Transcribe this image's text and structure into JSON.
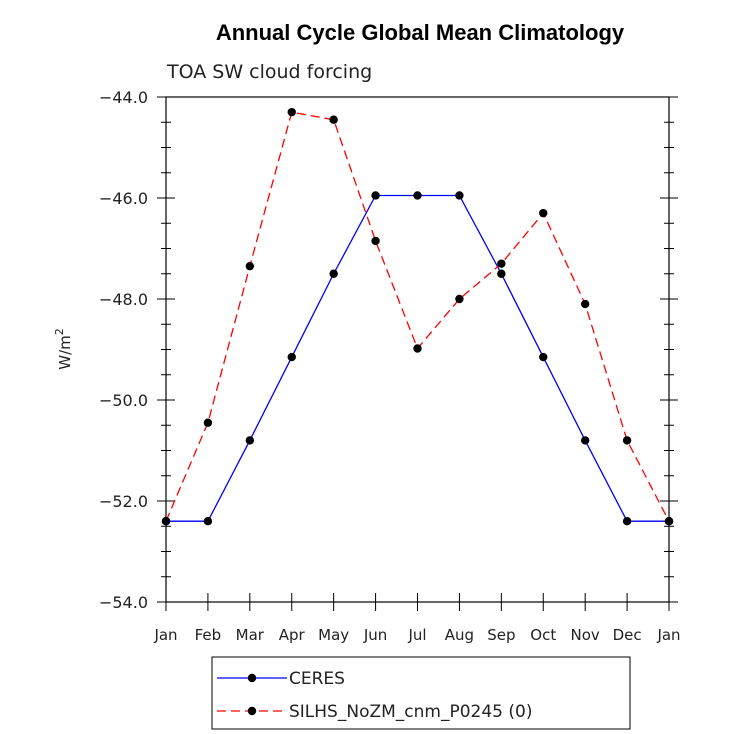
{
  "chart_data": {
    "type": "line",
    "title": "Annual Cycle Global Mean Climatology",
    "subtitle": "TOA SW cloud forcing",
    "ylabel": "W/m",
    "ylabel_sup": "2",
    "ylim": [
      -54.0,
      -44.0
    ],
    "yticks": [
      -44.0,
      -46.0,
      -48.0,
      -50.0,
      -52.0,
      -54.0
    ],
    "ytick_labels": [
      "−44.0",
      "−46.0",
      "−48.0",
      "−50.0",
      "−52.0",
      "−54.0"
    ],
    "categories": [
      "Jan",
      "Feb",
      "Mar",
      "Apr",
      "May",
      "Jun",
      "Jul",
      "Aug",
      "Sep",
      "Oct",
      "Nov",
      "Dec",
      "Jan"
    ],
    "series": [
      {
        "name": "CERES",
        "color": "#0000ff",
        "dashed": false,
        "values": [
          -52.4,
          -52.4,
          -50.8,
          -49.15,
          -47.5,
          -45.95,
          -45.95,
          -45.95,
          -47.5,
          -49.15,
          -50.8,
          -52.4,
          -52.4
        ]
      },
      {
        "name": "SILHS_NoZM_cnm_P0245 (0)",
        "color": "#ff0000",
        "dashed": true,
        "values": [
          -52.4,
          -50.45,
          -47.35,
          -44.3,
          -44.45,
          -46.85,
          -48.98,
          -48.0,
          -47.3,
          -46.3,
          -48.1,
          -50.8,
          -52.4
        ]
      }
    ],
    "legend_position": "bottom"
  }
}
